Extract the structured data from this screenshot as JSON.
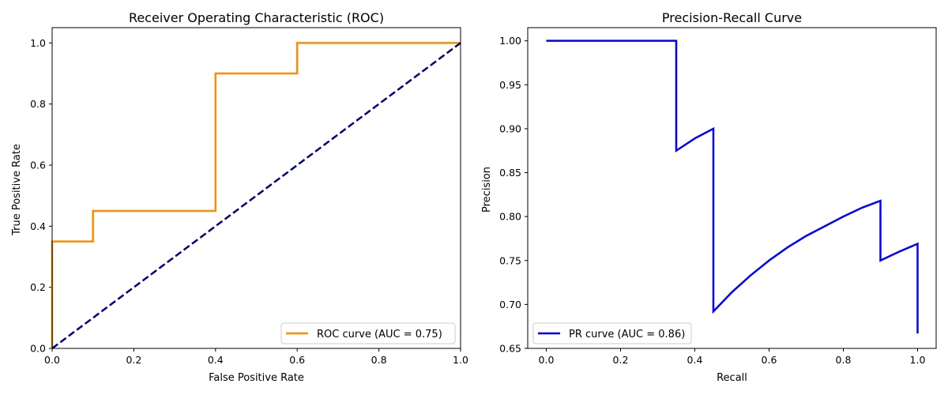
{
  "chart_data": [
    {
      "type": "line",
      "title": "Receiver Operating Characteristic (ROC)",
      "xlabel": "False Positive Rate",
      "ylabel": "True Positive Rate",
      "xlim": [
        0.0,
        1.0
      ],
      "ylim": [
        0.0,
        1.05
      ],
      "xticks": [
        "0.0",
        "0.2",
        "0.4",
        "0.6",
        "0.8",
        "1.0"
      ],
      "yticks": [
        "0.0",
        "0.2",
        "0.4",
        "0.6",
        "0.8",
        "1.0"
      ],
      "grid": false,
      "legend": "lower-right",
      "series": [
        {
          "name": "ROC curve (AUC = 0.75)",
          "color": "#ff8c00",
          "style": "solid",
          "x": [
            0.0,
            0.0,
            0.0,
            0.1,
            0.1,
            0.4,
            0.4,
            0.6,
            0.6,
            1.0
          ],
          "y": [
            0.0,
            0.05,
            0.35,
            0.35,
            0.45,
            0.45,
            0.9,
            0.9,
            1.0,
            1.0
          ]
        },
        {
          "color": "#000080",
          "style": "dashed",
          "x": [
            0.0,
            1.0
          ],
          "y": [
            0.0,
            1.0
          ]
        }
      ]
    },
    {
      "type": "line",
      "title": "Precision-Recall Curve",
      "xlabel": "Recall",
      "ylabel": "Precision",
      "xlim": [
        -0.05,
        1.05
      ],
      "ylim": [
        0.65,
        1.015
      ],
      "xticks": [
        "0.0",
        "0.2",
        "0.4",
        "0.6",
        "0.8",
        "1.0"
      ],
      "yticks": [
        "0.65",
        "0.70",
        "0.75",
        "0.80",
        "0.85",
        "0.90",
        "0.95",
        "1.00"
      ],
      "grid": false,
      "legend": "lower-left",
      "series": [
        {
          "name": "PR curve (AUC = 0.86)",
          "color": "#0000ff",
          "style": "solid",
          "x": [
            0.0,
            0.05,
            0.1,
            0.15,
            0.2,
            0.25,
            0.3,
            0.35,
            0.35,
            0.4,
            0.45,
            0.45,
            0.5,
            0.55,
            0.6,
            0.65,
            0.7,
            0.75,
            0.8,
            0.85,
            0.9,
            0.9,
            0.95,
            1.0,
            1.0
          ],
          "y": [
            1.0,
            1.0,
            1.0,
            1.0,
            1.0,
            1.0,
            1.0,
            1.0,
            0.875,
            0.889,
            0.9,
            0.692,
            0.714,
            0.733,
            0.75,
            0.765,
            0.778,
            0.789,
            0.8,
            0.81,
            0.818,
            0.75,
            0.76,
            0.769,
            0.667
          ]
        }
      ]
    }
  ]
}
